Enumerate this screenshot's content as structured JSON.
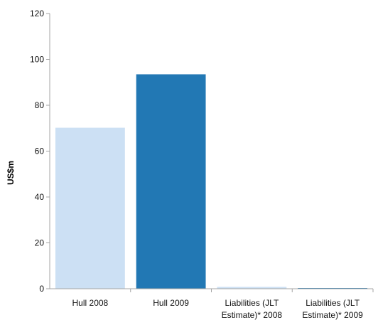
{
  "chart_data": {
    "type": "bar",
    "title": "",
    "xlabel": "",
    "ylabel": "US$m",
    "ylim": [
      0,
      120
    ],
    "yticks": [
      0,
      20,
      40,
      60,
      80,
      100,
      120
    ],
    "grid": false,
    "legend": "none",
    "categories": [
      [
        "Hull 2008"
      ],
      [
        "Hull 2009"
      ],
      [
        "Liabilities (JLT",
        "Estimate)* 2008"
      ],
      [
        "Liabilities (JLT",
        "Estimate)* 2009"
      ]
    ],
    "values": [
      70.2,
      93.5,
      0.8,
      0.2
    ],
    "colors": [
      "#cce0f4",
      "#2278b4",
      "#cce0f4",
      "#2278b4"
    ],
    "axis_color": "#a6a6a6",
    "text_color": "#111111"
  }
}
